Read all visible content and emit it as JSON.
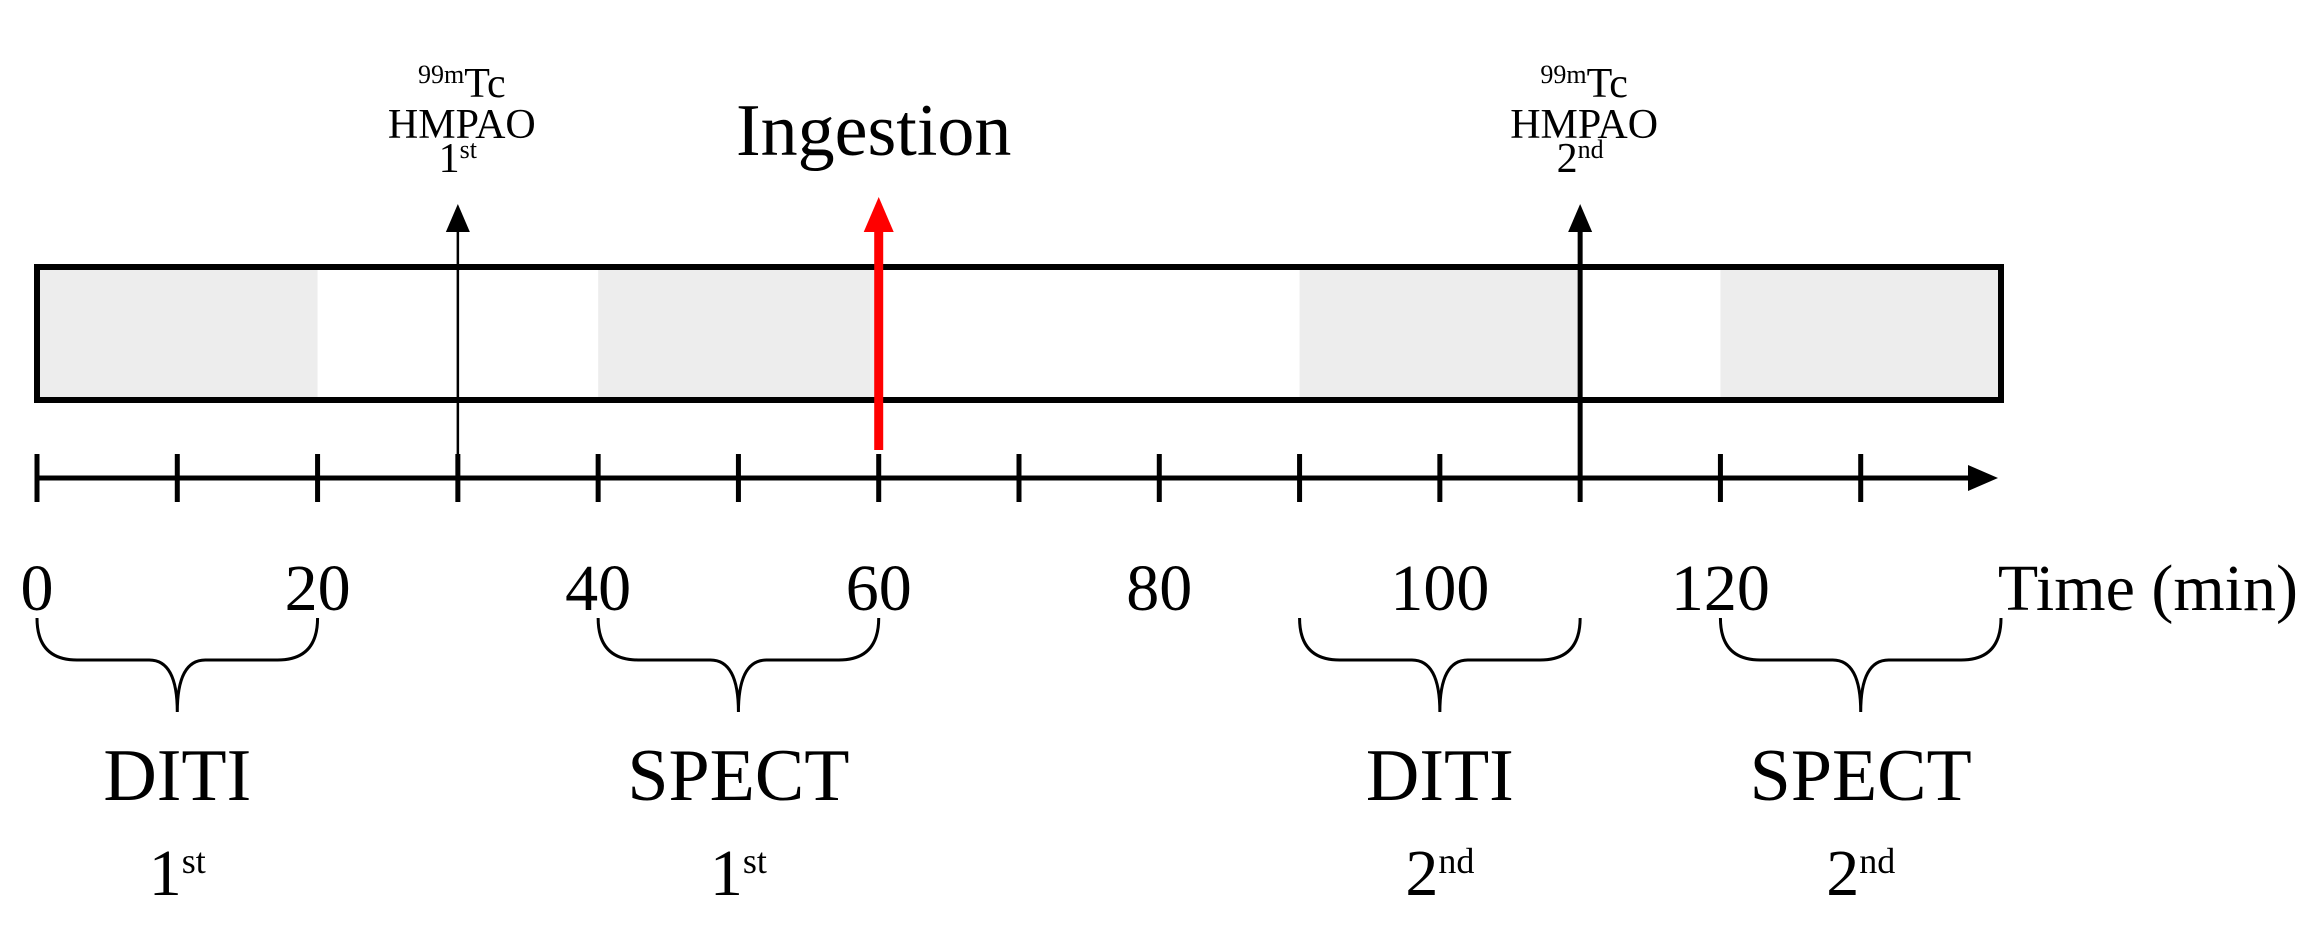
{
  "chart_data": {
    "type": "timeline",
    "x_axis": {
      "label": "Time (min)",
      "range": [
        0,
        140
      ],
      "tick_step": 10,
      "tick_labels": [
        "0",
        "20",
        "40",
        "60",
        "80",
        "100",
        "120"
      ],
      "tick_label_values": [
        0,
        20,
        40,
        60,
        80,
        100,
        120
      ]
    },
    "segments": [
      {
        "name": "DITI",
        "ordinal": "1",
        "ordinal_sup": "st",
        "start": 0,
        "end": 20,
        "shaded": true
      },
      {
        "name": "SPECT",
        "ordinal": "1",
        "ordinal_sup": "st",
        "start": 40,
        "end": 60,
        "shaded": true
      },
      {
        "name": "DITI",
        "ordinal": "2",
        "ordinal_sup": "nd",
        "start": 90,
        "end": 110,
        "shaded": true
      },
      {
        "name": "SPECT",
        "ordinal": "2",
        "ordinal_sup": "nd",
        "start": 120,
        "end": 140,
        "shaded": true
      }
    ],
    "events": [
      {
        "time": 30,
        "isotope_sup": "99m",
        "isotope": "Tc",
        "agent": "HMPAO",
        "ordinal": "1",
        "ordinal_sup": "st",
        "color": "#000000"
      },
      {
        "time": 60,
        "label": "Ingestion",
        "color": "#ff0000"
      },
      {
        "time": 110,
        "isotope_sup": "99m",
        "isotope": "Tc",
        "agent": "HMPAO",
        "ordinal": "2",
        "ordinal_sup": "nd",
        "color": "#000000"
      }
    ],
    "colors": {
      "shade": "#ededed",
      "axis": "#000000",
      "ingestion": "#ff0000"
    }
  }
}
